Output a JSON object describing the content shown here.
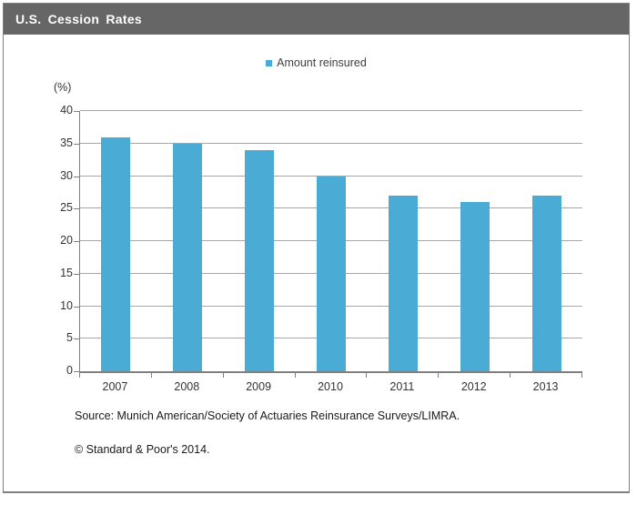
{
  "header": {
    "title": "U.S. Cession Rates",
    "bg_color": "#666666",
    "text_color": "#ffffff"
  },
  "legend": {
    "label": "Amount reinsured",
    "swatch_color": "#4AABD4"
  },
  "chart_data": {
    "type": "bar",
    "title": "U.S. Cession Rates",
    "unit_label": "(%)",
    "categories": [
      "2007",
      "2008",
      "2009",
      "2010",
      "2011",
      "2012",
      "2013"
    ],
    "series": [
      {
        "name": "Amount reinsured",
        "values": [
          36,
          35,
          34,
          30,
          27,
          26,
          27
        ]
      }
    ],
    "xlabel": "",
    "ylabel": "(%)",
    "ylim": [
      0,
      40
    ],
    "yticks": [
      0,
      5,
      10,
      15,
      20,
      25,
      30,
      35,
      40
    ],
    "grid": true,
    "legend_position": "top-center",
    "bar_color": "#4AABD4",
    "gridline_color": "#a6a6a6",
    "axis_color": "#808080"
  },
  "footer": {
    "source": "Source: Munich American/Society of Actuaries Reinsurance Surveys/LIMRA.",
    "copyright": "© Standard & Poor's 2014."
  }
}
